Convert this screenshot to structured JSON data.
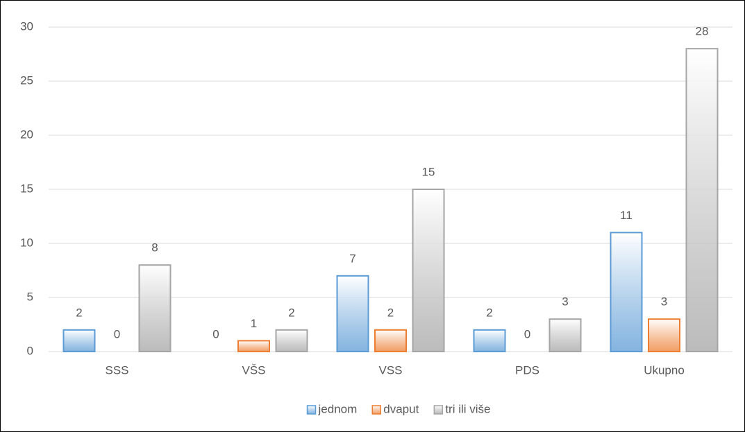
{
  "chart_data": {
    "type": "bar",
    "categories": [
      "SSS",
      "VŠS",
      "VSS",
      "PDS",
      "Ukupno"
    ],
    "series": [
      {
        "name": "jednom",
        "color": "#5b9bd5",
        "values": [
          2,
          0,
          7,
          2,
          11
        ]
      },
      {
        "name": "dvaput",
        "color": "#ed7d31",
        "values": [
          0,
          1,
          2,
          0,
          3
        ]
      },
      {
        "name": "tri ili više",
        "color": "#a5a5a5",
        "values": [
          8,
          2,
          15,
          3,
          28
        ]
      }
    ],
    "ylim": [
      0,
      30
    ],
    "yticks": [
      0,
      5,
      10,
      15,
      20,
      25,
      30
    ],
    "grid": true,
    "legend": "bottom"
  }
}
